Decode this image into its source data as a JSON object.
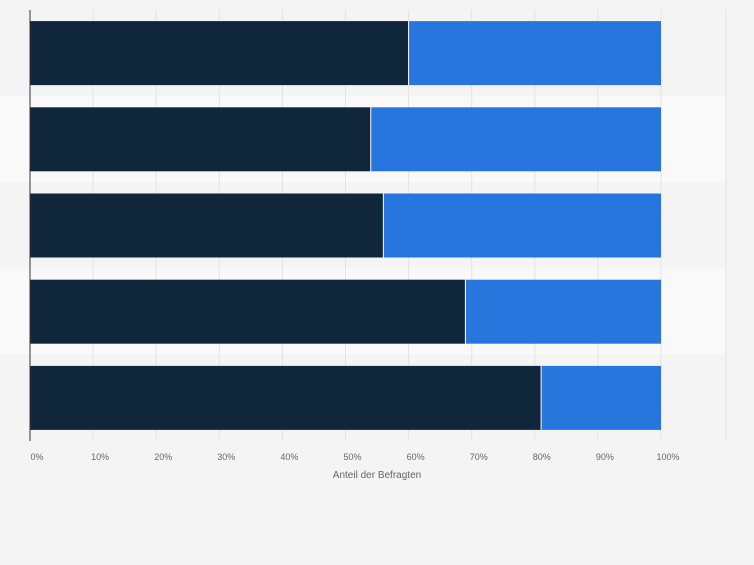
{
  "chart_data": {
    "type": "bar",
    "orientation": "horizontal",
    "stacked": true,
    "categories": [
      "",
      "",
      "",
      "",
      ""
    ],
    "series": [
      {
        "values": [
          60,
          54,
          56,
          69,
          81
        ]
      },
      {
        "values": [
          40,
          46,
          44,
          31,
          19
        ]
      }
    ],
    "xlabel": "Anteil der Befragten",
    "ylabel": "",
    "xlim": [
      0,
      100
    ],
    "x_ticks": [
      "0%",
      "10%",
      "20%",
      "30%",
      "40%",
      "50%",
      "60%",
      "70%",
      "80%",
      "90%",
      "100%"
    ],
    "grid": true,
    "colors": [
      "#10263b",
      "#2876dd"
    ]
  }
}
